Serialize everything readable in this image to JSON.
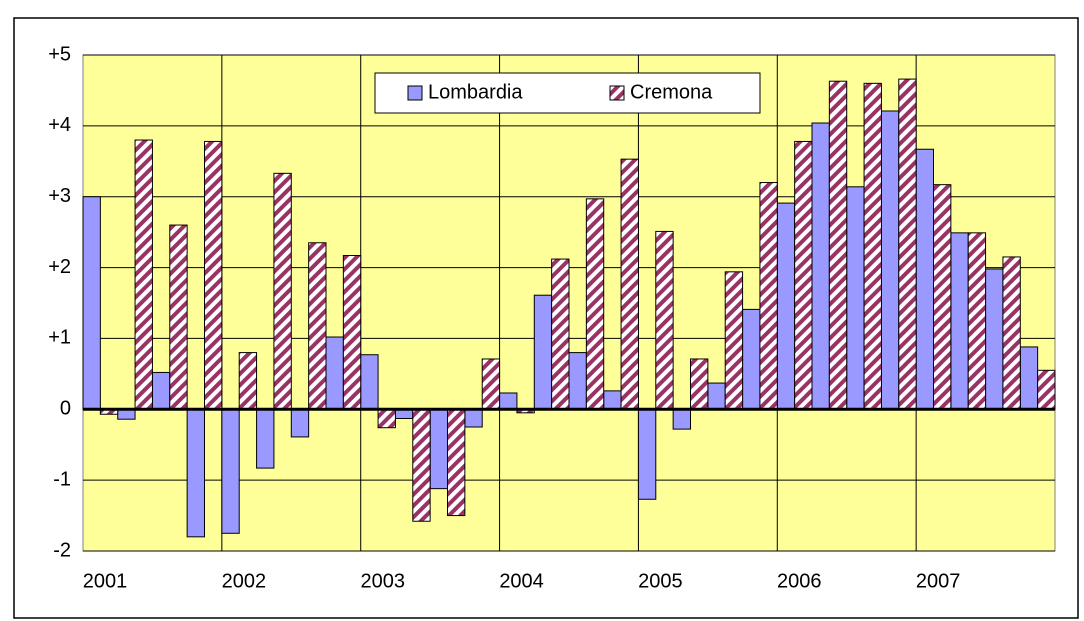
{
  "chart_data": {
    "type": "bar",
    "categories": [
      "2001",
      null,
      null,
      null,
      "2002",
      null,
      null,
      null,
      "2003",
      null,
      null,
      null,
      "2004",
      null,
      null,
      null,
      "2005",
      null,
      null,
      null,
      "2006",
      null,
      null,
      null,
      "2007",
      null,
      null,
      null
    ],
    "series": [
      {
        "name": "Lombardia",
        "color": "#9999ff",
        "values": [
          3.0,
          -0.14,
          0.52,
          -1.8,
          -1.75,
          -0.83,
          -0.39,
          1.02,
          0.77,
          -0.13,
          -1.12,
          -0.25,
          0.23,
          1.61,
          0.8,
          0.26,
          -1.27,
          -0.28,
          0.37,
          1.41,
          2.91,
          4.04,
          3.14,
          4.21,
          3.67,
          2.49,
          1.98,
          0.88
        ]
      },
      {
        "name": "Cremona",
        "color": "#993366",
        "values": [
          -0.07,
          3.8,
          2.6,
          3.78,
          0.8,
          3.33,
          2.35,
          2.17,
          -0.26,
          -1.58,
          -1.5,
          0.71,
          -0.05,
          2.12,
          2.97,
          3.53,
          2.51,
          0.71,
          1.94,
          3.2,
          3.78,
          4.63,
          4.6,
          4.66,
          3.17,
          2.49,
          2.15,
          0.55
        ]
      }
    ],
    "ylim": [
      -2,
      5
    ],
    "yticks": [
      -2,
      -1,
      0,
      {
        "value": 1,
        "label": "+1"
      },
      {
        "value": 2,
        "label": "+2"
      },
      {
        "value": 3,
        "label": "+3"
      },
      {
        "value": 4,
        "label": "+4"
      },
      {
        "value": 5,
        "label": "+5"
      }
    ],
    "grid": true
  }
}
